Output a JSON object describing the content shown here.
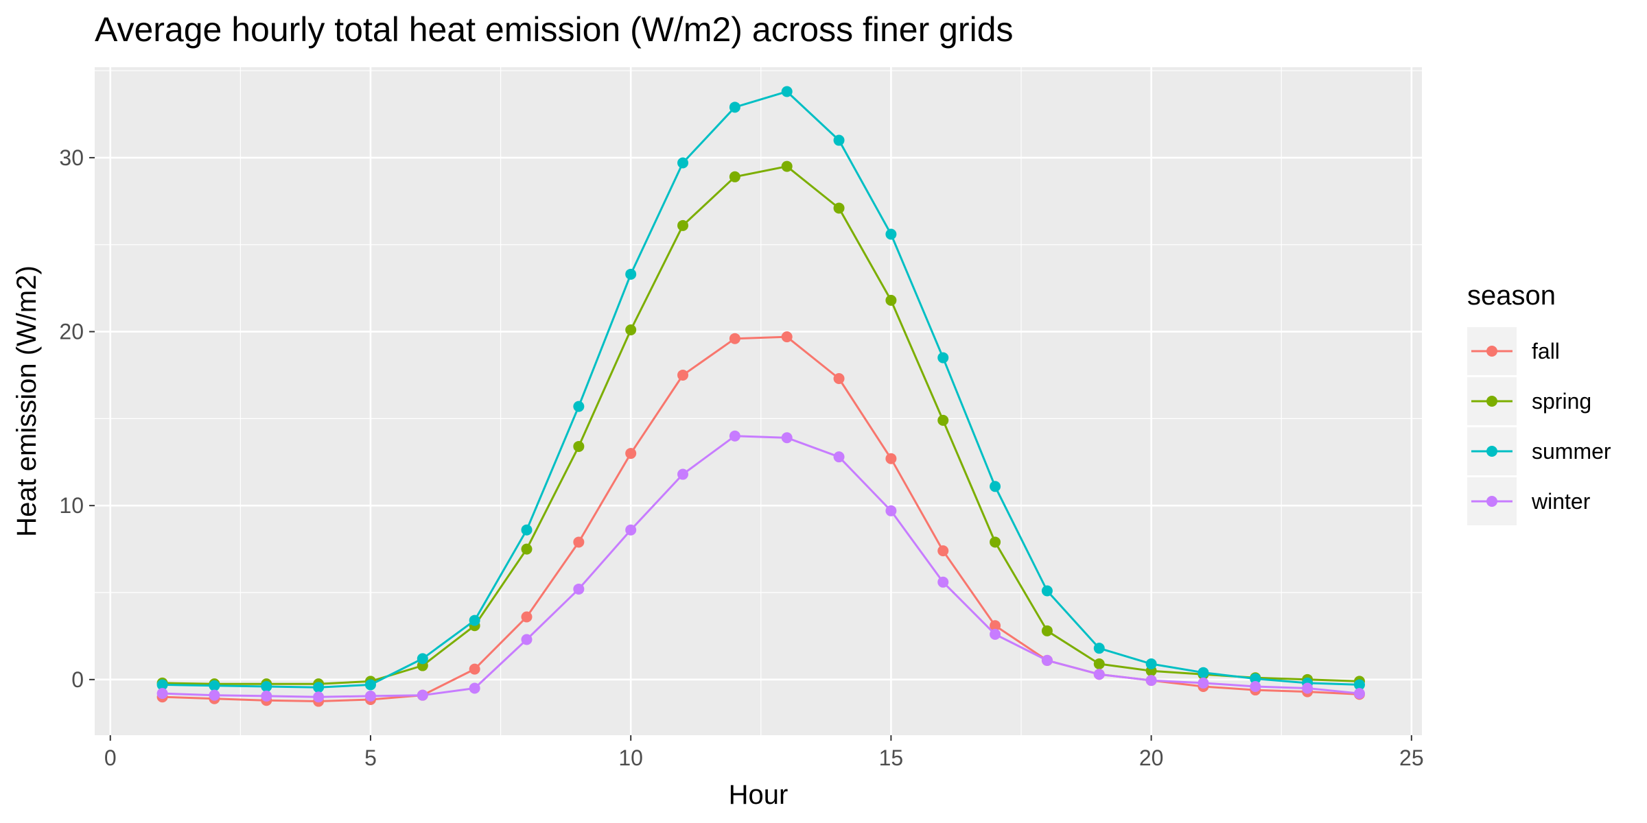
{
  "chart_data": {
    "type": "line",
    "title": "Average hourly total heat emission (W/m2) across finer grids",
    "xlabel": "Hour",
    "ylabel": "Heat emission (W/m2)",
    "xlim": [
      -0.3,
      25.2
    ],
    "ylim": [
      -3.2,
      35.2
    ],
    "x_ticks": [
      0,
      5,
      10,
      15,
      20,
      25
    ],
    "y_ticks": [
      0,
      10,
      20,
      30
    ],
    "grid": true,
    "legend": {
      "title": "season",
      "position": "right"
    },
    "x": [
      1,
      2,
      3,
      4,
      5,
      6,
      7,
      8,
      9,
      10,
      11,
      12,
      13,
      14,
      15,
      16,
      17,
      18,
      19,
      20,
      21,
      22,
      23,
      24
    ],
    "series": [
      {
        "name": "fall",
        "color": "#F8766D",
        "values": [
          -1.0,
          -1.1,
          -1.2,
          -1.25,
          -1.15,
          -0.9,
          0.6,
          3.6,
          7.9,
          13.0,
          17.5,
          19.6,
          19.7,
          17.3,
          12.7,
          7.4,
          3.1,
          1.1,
          0.3,
          -0.05,
          -0.4,
          -0.6,
          -0.7,
          -0.85
        ]
      },
      {
        "name": "spring",
        "color": "#7CAE00",
        "values": [
          -0.2,
          -0.25,
          -0.25,
          -0.25,
          -0.1,
          0.8,
          3.1,
          7.5,
          13.4,
          20.1,
          26.1,
          28.9,
          29.5,
          27.1,
          21.8,
          14.9,
          7.9,
          2.8,
          0.9,
          0.5,
          0.3,
          0.1,
          0.0,
          -0.1
        ]
      },
      {
        "name": "summer",
        "color": "#00BFC4",
        "values": [
          -0.3,
          -0.35,
          -0.4,
          -0.45,
          -0.3,
          1.2,
          3.4,
          8.6,
          15.7,
          23.3,
          29.7,
          32.9,
          33.8,
          31.0,
          25.6,
          18.5,
          11.1,
          5.1,
          1.8,
          0.9,
          0.4,
          0.05,
          -0.2,
          -0.3
        ]
      },
      {
        "name": "winter",
        "color": "#C77CFF",
        "values": [
          -0.8,
          -0.9,
          -0.95,
          -1.0,
          -0.95,
          -0.9,
          -0.5,
          2.3,
          5.2,
          8.6,
          11.8,
          14.0,
          13.9,
          12.8,
          9.7,
          5.6,
          2.6,
          1.1,
          0.3,
          -0.05,
          -0.2,
          -0.4,
          -0.5,
          -0.8
        ]
      }
    ]
  }
}
